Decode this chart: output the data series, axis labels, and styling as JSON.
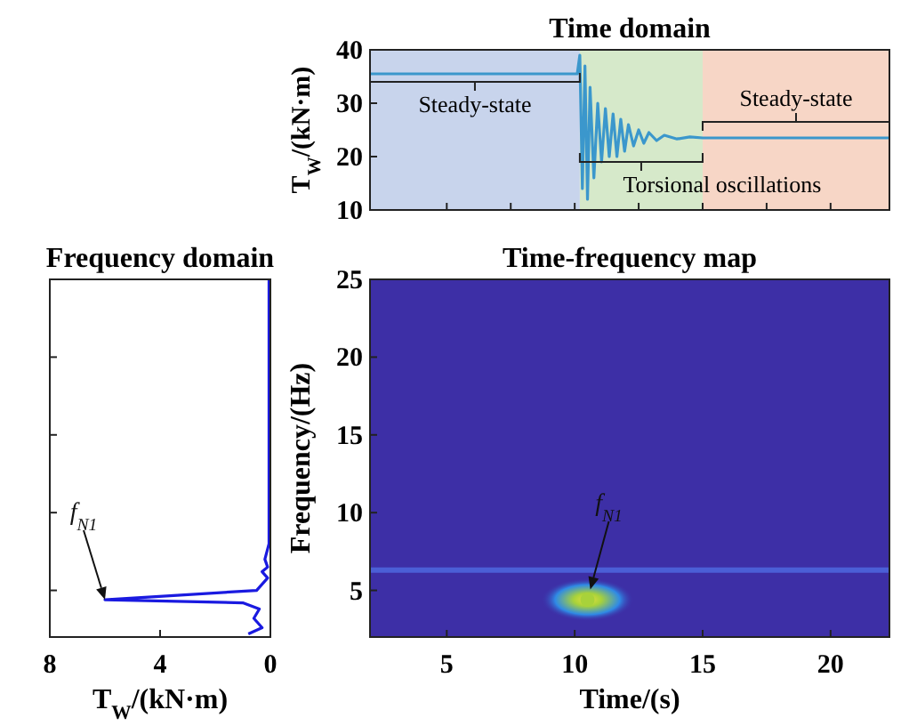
{
  "chart_data": [
    {
      "type": "line",
      "title": "Time domain",
      "ylabel": "T$_{W}$/(kN·m)",
      "xlim": [
        2,
        22.3
      ],
      "ylim": [
        10,
        40
      ],
      "yticks": [
        10,
        20,
        30,
        40
      ],
      "xticks": [
        {
          "value": 5,
          "label": null
        },
        {
          "value": 7.5,
          "label": null
        },
        {
          "value": 10,
          "label": null
        },
        {
          "value": 12.5,
          "label": null
        },
        {
          "value": 15,
          "label": null
        },
        {
          "value": 17.5,
          "label": null
        },
        {
          "value": 20,
          "label": null
        }
      ],
      "tick_labels": "y",
      "bands": [
        {
          "axis": "x",
          "from": 2,
          "to": 10.2,
          "label": "Steady-state",
          "color": "#c8d4ec"
        },
        {
          "axis": "x",
          "from": 10.2,
          "to": 15,
          "label": "Torsional oscillations",
          "color": "#d6e9ca"
        },
        {
          "axis": "x",
          "from": 15,
          "to": 22.3,
          "label": "Steady-state",
          "color": "#f7d6c6"
        }
      ],
      "series": [
        {
          "color": "#3b97cc",
          "x": [
            2,
            10.1,
            10.2,
            10.3,
            10.4,
            10.5,
            10.6,
            10.75,
            10.9,
            11.05,
            11.2,
            11.35,
            11.5,
            11.65,
            11.8,
            11.95,
            12.1,
            12.3,
            12.5,
            12.7,
            12.9,
            13.2,
            13.5,
            14,
            14.5,
            15,
            22.3
          ],
          "values": [
            35.5,
            35.5,
            39,
            14,
            37,
            12,
            33,
            16,
            30,
            19,
            29,
            20,
            28,
            20,
            27,
            21,
            26,
            22,
            25,
            22.5,
            24.5,
            23,
            24,
            23.3,
            23.7,
            23.5,
            23.5
          ]
        }
      ]
    },
    {
      "type": "line",
      "title": "Frequency domain",
      "xlabel": "T$_{W}$/(kN·m)",
      "xlim": [
        8,
        0
      ],
      "xticks": [
        8,
        4,
        0
      ],
      "ylim": [
        2,
        25
      ],
      "yticks": [
        {
          "value": 5,
          "label": null
        },
        {
          "value": 10,
          "label": null
        },
        {
          "value": 15,
          "label": null
        },
        {
          "value": 20,
          "label": null
        }
      ],
      "tick_labels": "x",
      "annotations": [
        {
          "text": "f$_{N1}$",
          "x": 6,
          "y": 4.4
        }
      ],
      "series": [
        {
          "color": "#1a1ae0",
          "x": [
            0.05,
            0.05,
            0.2,
            0.1,
            0.3,
            0.1,
            0.5,
            6,
            1,
            0.4,
            0.6,
            0.3,
            0.8
          ],
          "values": [
            25,
            8,
            7,
            6.5,
            6.2,
            5.8,
            5,
            4.4,
            4.2,
            3.8,
            3.2,
            2.6,
            2.2
          ]
        }
      ]
    },
    {
      "type": "scatter",
      "title": "Time-frequency map",
      "xlabel": "Time/(s)",
      "ylabel": "Frequency/(Hz)",
      "xlim": [
        2,
        22.3
      ],
      "xticks": [
        5,
        10,
        15,
        20
      ],
      "ylim": [
        2,
        25
      ],
      "yticks": [
        5,
        10,
        15,
        20,
        25
      ],
      "ref_lines": [
        {
          "axis": "y",
          "value": 6.3,
          "color": "#4b5fd6"
        }
      ],
      "series": [
        {
          "color": "#a8d23a",
          "x": [
            10.5
          ],
          "values": [
            4.4
          ]
        }
      ],
      "annotations": [
        {
          "text": "f$_{N1}$",
          "x": 10.5,
          "y": 4.4
        }
      ]
    }
  ]
}
